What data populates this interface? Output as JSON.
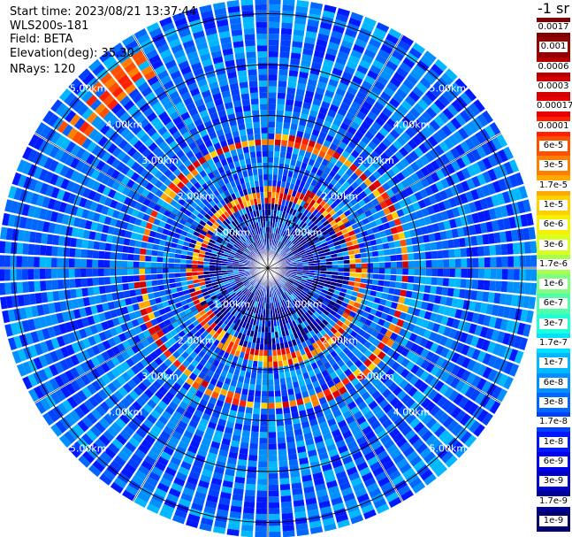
{
  "info": {
    "start_time": "Start time: 2023/08/21 13:37:44",
    "instrument": "WLS200s-181",
    "field": "Field: BETA",
    "elevation": "Elevation(deg): 35.30",
    "nrays": "NRays: 120"
  },
  "colorbar": {
    "unit": "-1 sr",
    "ticks": [
      "0.0017",
      "0.001",
      "0.0006",
      "0.0003",
      "0.00017",
      "0.0001",
      "6e-5",
      "3e-5",
      "1.7e-5",
      "1e-5",
      "6e-6",
      "3e-6",
      "1.7e-6",
      "1e-6",
      "6e-7",
      "3e-7",
      "1.7e-7",
      "1e-7",
      "6e-8",
      "3e-8",
      "1.7e-8",
      "1e-8",
      "6e-9",
      "3e-9",
      "1.7e-9",
      "1e-9"
    ],
    "colors": [
      "#7f0000",
      "#960000",
      "#b40000",
      "#d00000",
      "#e80000",
      "#ff2000",
      "#ff5000",
      "#ff8000",
      "#ffa800",
      "#ffd000",
      "#f8f000",
      "#d8ff20",
      "#a8ff50",
      "#80ff80",
      "#50ffa8",
      "#20ffd8",
      "#00e0ff",
      "#00b8ff",
      "#0090ff",
      "#0068ff",
      "#0040ff",
      "#0018ff",
      "#0000e8",
      "#0000c0",
      "#000098",
      "#000070"
    ]
  },
  "chart_data": {
    "type": "heatmap",
    "projection": "polar PPI scan",
    "field": "BETA",
    "unit": "-1 sr",
    "n_rays": 120,
    "elevation_deg": 35.3,
    "range_ring_labels": [
      "1.00km",
      "2.00km",
      "3.00km",
      "4.00km",
      "5.00km"
    ],
    "range_rings_km": [
      1,
      2,
      3,
      4,
      5
    ],
    "max_range_km": 5.3,
    "background_level": "3e-8",
    "features": [
      {
        "description": "aerosol ring",
        "approx_range_km": [
          1.6,
          2.6
        ],
        "peak_value": "0.0003"
      },
      {
        "description": "clutter near origin",
        "approx_range_km": [
          0,
          0.3
        ],
        "value": "1e-9"
      }
    ]
  }
}
